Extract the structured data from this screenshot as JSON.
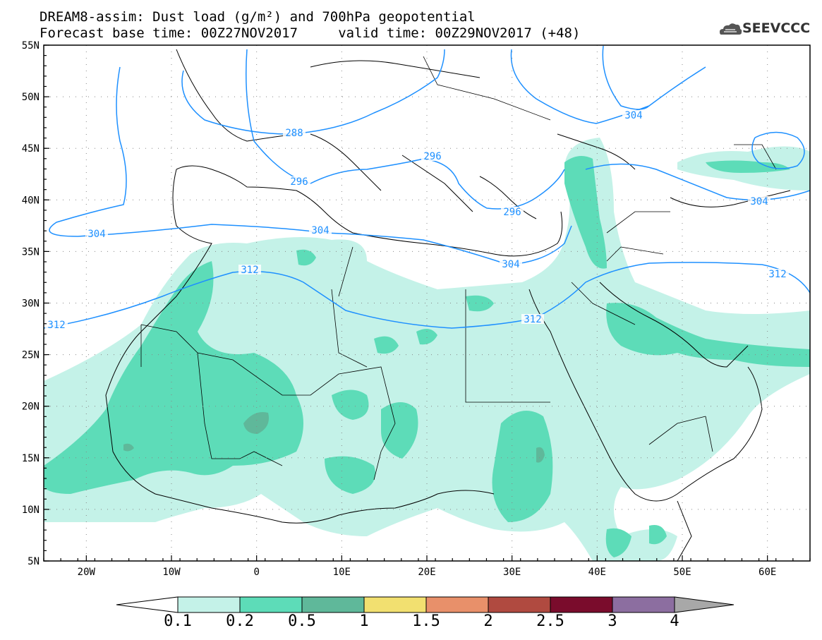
{
  "title": {
    "line1": "DREAM8-assim: Dust load (g/m²) and 700hPa geopotential",
    "line2": "Forecast base time: 00Z27NOV2017     valid time: 00Z29NOV2017 (+48)"
  },
  "logo": {
    "text": "SEEVCCC",
    "icon": "cloud-logo-icon"
  },
  "map": {
    "lon_labels": [
      "20W",
      "10W",
      "0",
      "10E",
      "20E",
      "30E",
      "40E",
      "50E",
      "60E"
    ],
    "lat_labels": [
      "55N",
      "50N",
      "45N",
      "40N",
      "35N",
      "30N",
      "25N",
      "20N",
      "15N",
      "10N",
      "5N"
    ],
    "lon_range": [
      -25,
      65
    ],
    "lat_range": [
      5,
      55
    ],
    "contour_labels": [
      "288",
      "296",
      "296",
      "296",
      "304",
      "304",
      "304",
      "304",
      "304",
      "312",
      "312",
      "312",
      "312"
    ],
    "contour_color": "#1e90ff"
  },
  "colorbar": {
    "labels": [
      "0.1",
      "0.2",
      "0.5",
      "1",
      "1.5",
      "2",
      "2.5",
      "3",
      "4"
    ],
    "colors": [
      "#c4f2e8",
      "#5ddcb8",
      "#5fb89a",
      "#f2e070",
      "#e8906a",
      "#b04a40",
      "#7a0c2c",
      "#8c6ea0"
    ],
    "end_colors": {
      "low": "#ffffff",
      "high": "#a8a8a8"
    }
  }
}
